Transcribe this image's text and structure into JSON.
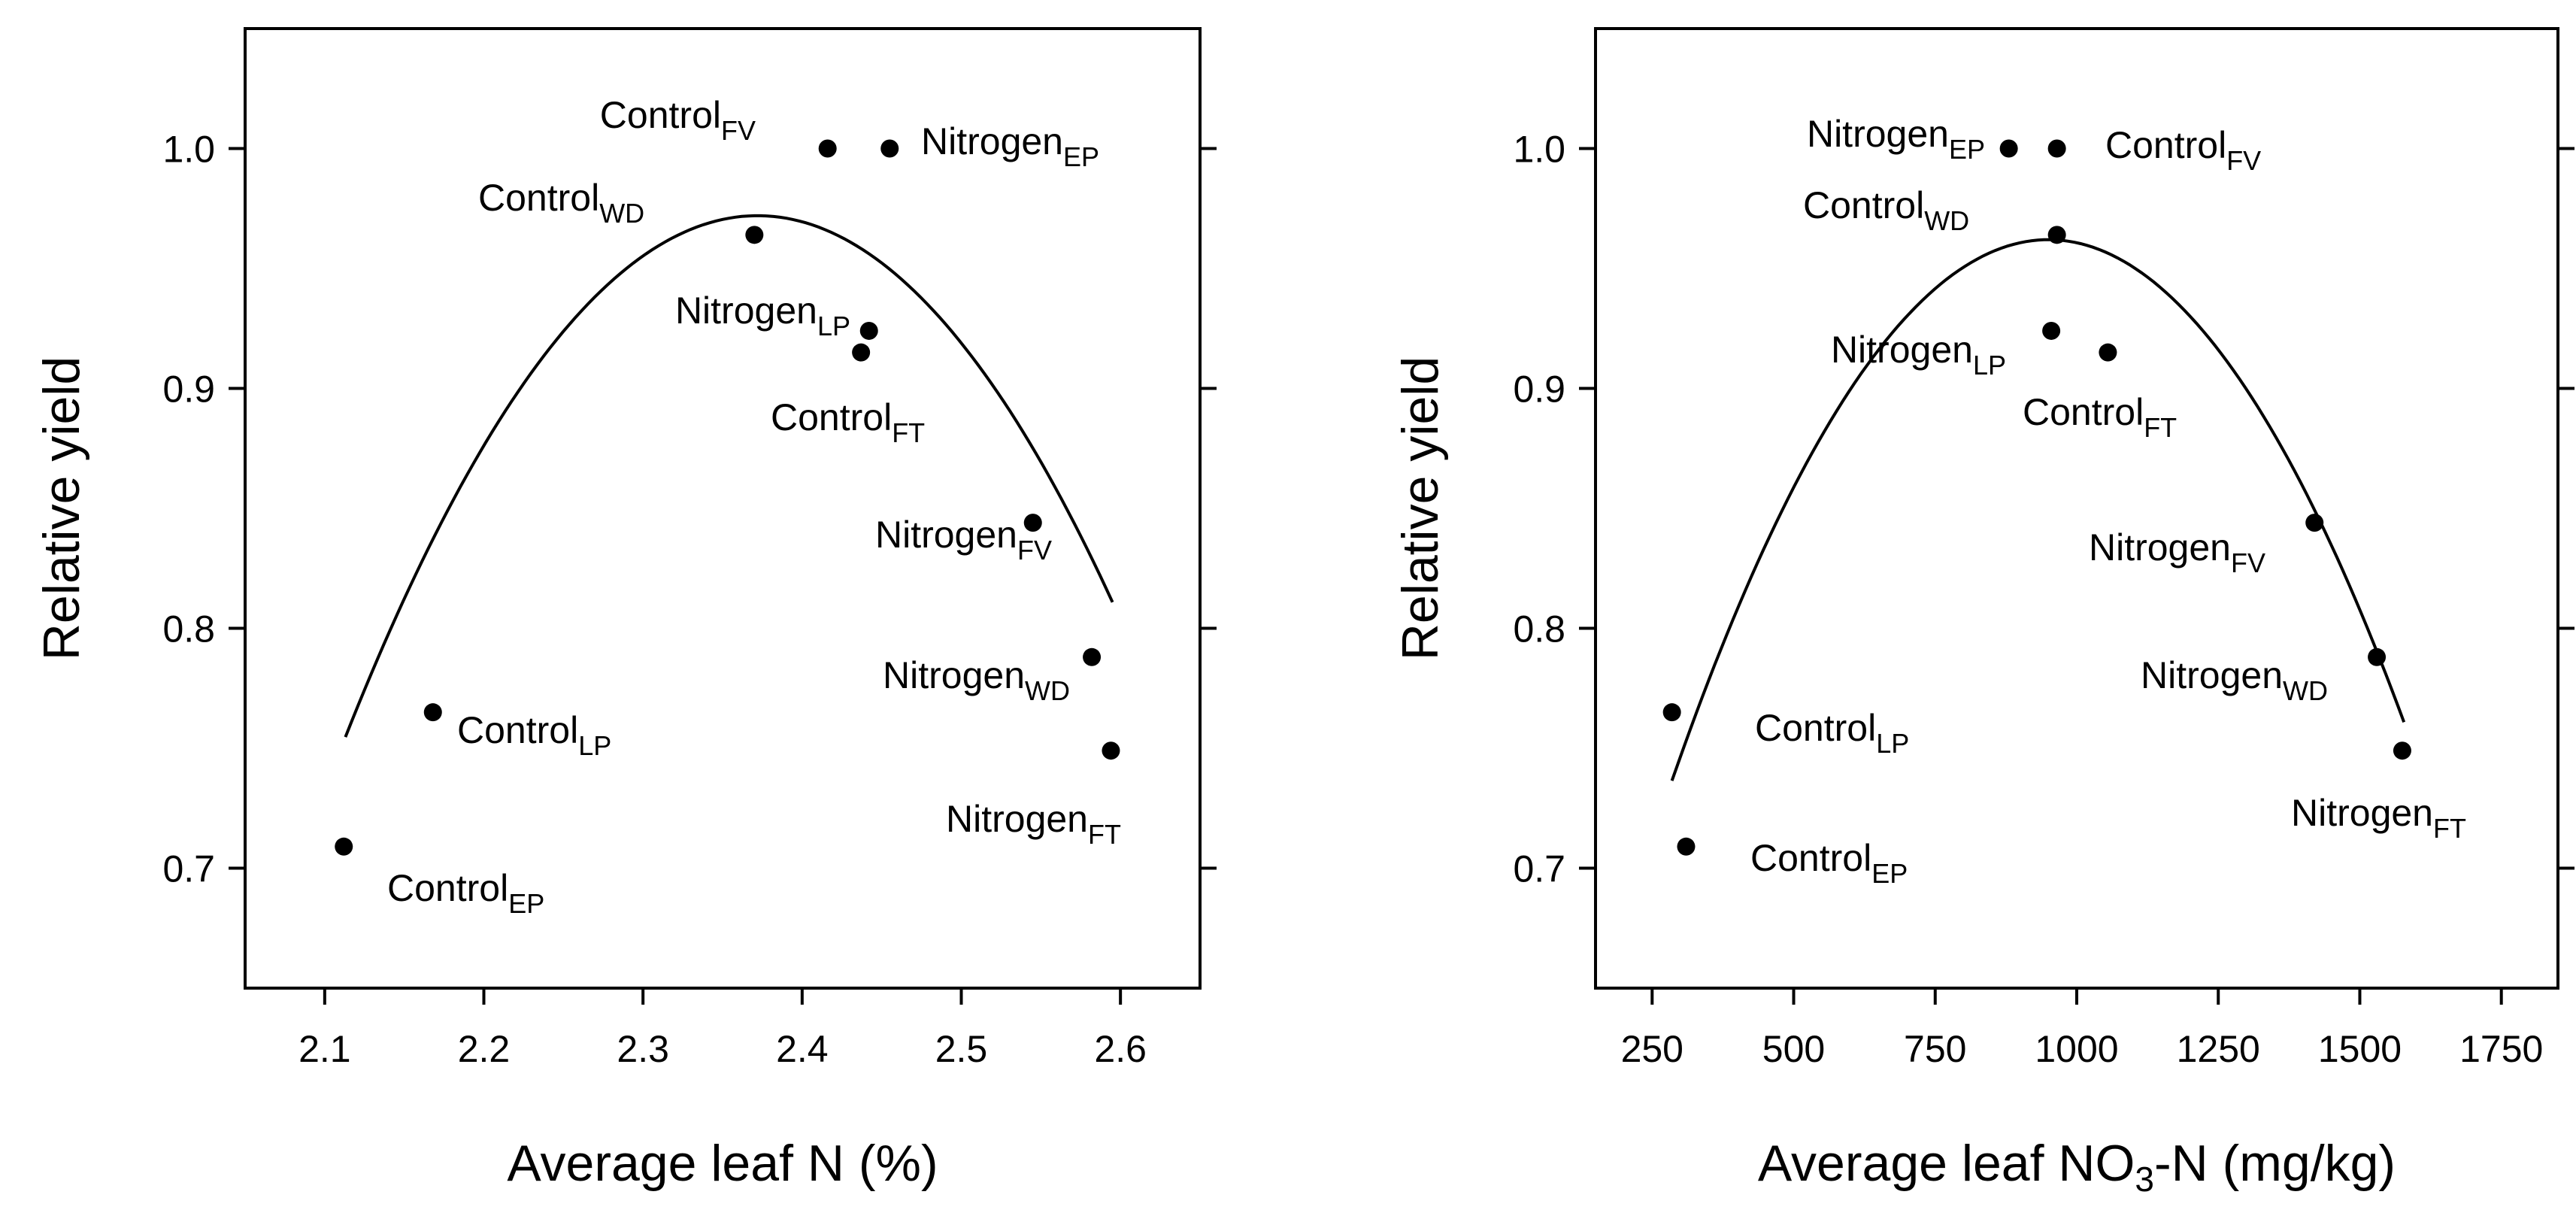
{
  "chart_data": [
    {
      "type": "scatter",
      "title": "",
      "xlabel": "Average leaf N (%)",
      "ylabel": "Relative yield",
      "xlim": [
        2.05,
        2.65
      ],
      "ylim": [
        0.65,
        1.05
      ],
      "xticks": [
        2.1,
        2.2,
        2.3,
        2.4,
        2.5,
        2.6
      ],
      "xtick_labels": [
        "2.1",
        "2.2",
        "2.3",
        "2.4",
        "2.5",
        "2.6"
      ],
      "yticks": [
        0.7,
        0.8,
        0.9,
        1.0
      ],
      "ytick_labels": [
        "0.7",
        "0.8",
        "0.9",
        "1.0"
      ],
      "points": [
        {
          "x": 2.112,
          "y": 0.709,
          "name": "Control",
          "sub": "EP"
        },
        {
          "x": 2.168,
          "y": 0.765,
          "name": "Control",
          "sub": "LP"
        },
        {
          "x": 2.37,
          "y": 0.964,
          "name": "Control",
          "sub": "WD"
        },
        {
          "x": 2.416,
          "y": 1.0,
          "name": "Control",
          "sub": "FV"
        },
        {
          "x": 2.455,
          "y": 1.0,
          "name": "Nitrogen",
          "sub": "EP"
        },
        {
          "x": 2.442,
          "y": 0.924,
          "name": "Nitrogen",
          "sub": "LP"
        },
        {
          "x": 2.437,
          "y": 0.915,
          "name": "Control",
          "sub": "FT"
        },
        {
          "x": 2.545,
          "y": 0.844,
          "name": "Nitrogen",
          "sub": "FV"
        },
        {
          "x": 2.582,
          "y": 0.788,
          "name": "Nitrogen",
          "sub": "WD"
        },
        {
          "x": 2.594,
          "y": 0.749,
          "name": "Nitrogen",
          "sub": "FT"
        }
      ],
      "fit_curve": {
        "type": "quadratic",
        "x_range": [
          2.113,
          2.595
        ],
        "vertex": [
          2.372,
          0.972
        ],
        "a": -3.24
      }
    },
    {
      "type": "scatter",
      "title": "",
      "xlabel": "Average leaf NO3-N (mg/kg)",
      "xlabel_parts": [
        "Average leaf NO",
        "3",
        "-N (mg/kg)"
      ],
      "ylabel": "Relative yield",
      "xlim": [
        150,
        1850
      ],
      "ylim": [
        0.65,
        1.05
      ],
      "xticks": [
        250,
        500,
        750,
        1000,
        1250,
        1500,
        1750
      ],
      "xtick_labels": [
        "250",
        "500",
        "750",
        "1000",
        "1250",
        "1500",
        "1750"
      ],
      "yticks": [
        0.7,
        0.8,
        0.9,
        1.0
      ],
      "ytick_labels": [
        "0.7",
        "0.8",
        "0.9",
        "1.0"
      ],
      "points": [
        {
          "x": 310,
          "y": 0.709,
          "name": "Control",
          "sub": "EP"
        },
        {
          "x": 285,
          "y": 0.765,
          "name": "Control",
          "sub": "LP"
        },
        {
          "x": 965,
          "y": 0.964,
          "name": "Control",
          "sub": "WD"
        },
        {
          "x": 965,
          "y": 1.0,
          "name": "Control",
          "sub": "FV"
        },
        {
          "x": 880,
          "y": 1.0,
          "name": "Nitrogen",
          "sub": "EP"
        },
        {
          "x": 955,
          "y": 0.924,
          "name": "Nitrogen",
          "sub": "LP"
        },
        {
          "x": 1055,
          "y": 0.915,
          "name": "Control",
          "sub": "FT"
        },
        {
          "x": 1420,
          "y": 0.844,
          "name": "Nitrogen",
          "sub": "FV"
        },
        {
          "x": 1530,
          "y": 0.788,
          "name": "Nitrogen",
          "sub": "WD"
        },
        {
          "x": 1575,
          "y": 0.749,
          "name": "Nitrogen",
          "sub": "FT"
        }
      ],
      "fit_curve": {
        "type": "quadratic",
        "x_range": [
          285,
          1578
        ],
        "vertex": [
          950,
          0.962
        ],
        "a": -5.1e-07
      }
    }
  ]
}
